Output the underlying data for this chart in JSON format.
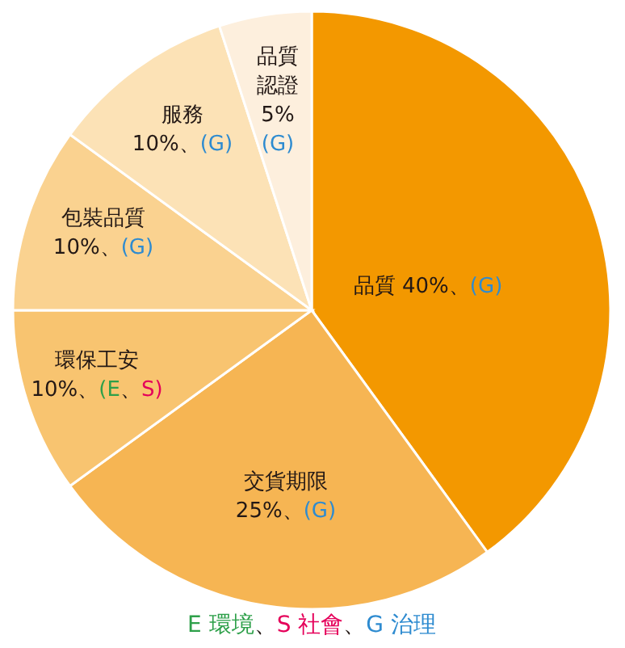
{
  "chart_data": {
    "type": "pie",
    "categories": [
      "品質",
      "交貨期限",
      "環保工安",
      "包裝品質",
      "服務",
      "品質認證"
    ],
    "values": [
      40,
      25,
      10,
      10,
      10,
      5
    ],
    "value_labels": [
      "40%、(G)",
      "25%、(G)",
      "10%、(E、S)",
      "10%、(G)",
      "10%、(G)",
      "5% (G)"
    ],
    "colors": [
      "#f39800",
      "#f6b553",
      "#f8c470",
      "#fad290",
      "#fce2b6",
      "#fdefdd"
    ],
    "annotations": [
      "E 環境、S 社會、G 治理"
    ]
  }
}
